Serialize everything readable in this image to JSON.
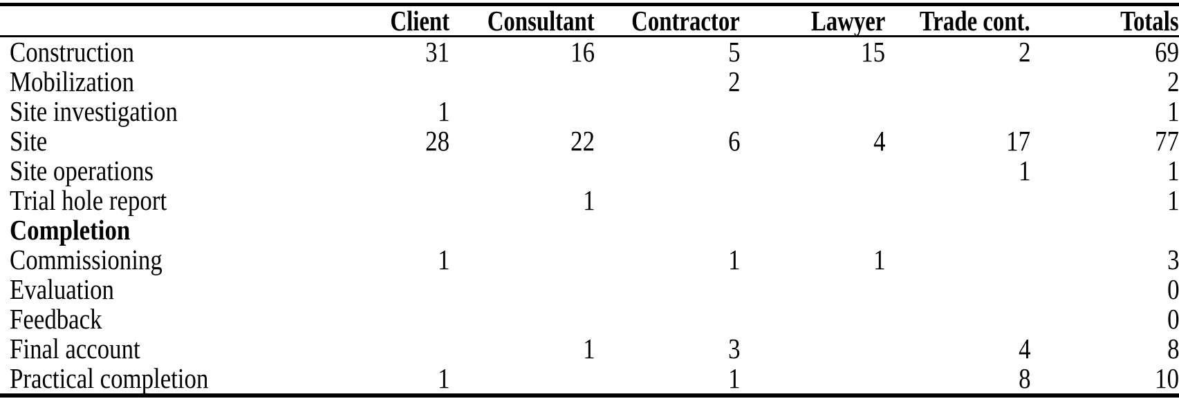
{
  "chart_data": {
    "type": "table",
    "corner_label": "",
    "headers": [
      "Client",
      "Consultant",
      "Contractor",
      "Lawyer",
      "Trade cont.",
      "Totals"
    ],
    "rows": [
      {
        "label": "Construction",
        "bold": false,
        "values": [
          "31",
          "16",
          "5",
          "15",
          "2",
          "69"
        ]
      },
      {
        "label": "Mobilization",
        "bold": false,
        "values": [
          "",
          "",
          "2",
          "",
          "",
          "2"
        ]
      },
      {
        "label": "Site investigation",
        "bold": false,
        "values": [
          "1",
          "",
          "",
          "",
          "",
          "1"
        ]
      },
      {
        "label": "Site",
        "bold": false,
        "values": [
          "28",
          "22",
          "6",
          "4",
          "17",
          "77"
        ]
      },
      {
        "label": "Site operations",
        "bold": false,
        "values": [
          "",
          "",
          "",
          "",
          "1",
          "1"
        ]
      },
      {
        "label": "Trial hole report",
        "bold": false,
        "values": [
          "",
          "1",
          "",
          "",
          "",
          "1"
        ]
      },
      {
        "label": "Completion",
        "bold": true,
        "values": [
          "",
          "",
          "",
          "",
          "",
          ""
        ]
      },
      {
        "label": "Commissioning",
        "bold": false,
        "values": [
          "1",
          "",
          "1",
          "1",
          "",
          "3"
        ]
      },
      {
        "label": "Evaluation",
        "bold": false,
        "values": [
          "",
          "",
          "",
          "",
          "",
          "0"
        ]
      },
      {
        "label": "Feedback",
        "bold": false,
        "values": [
          "",
          "",
          "",
          "",
          "",
          "0"
        ]
      },
      {
        "label": "Final account",
        "bold": false,
        "values": [
          "",
          "1",
          "3",
          "",
          "4",
          "8"
        ]
      },
      {
        "label": "Practical completion",
        "bold": false,
        "values": [
          "1",
          "",
          "1",
          "",
          "8",
          "10"
        ]
      }
    ]
  },
  "colors": {
    "text": "#000000",
    "background": "#ffffff",
    "rule": "#000000"
  }
}
